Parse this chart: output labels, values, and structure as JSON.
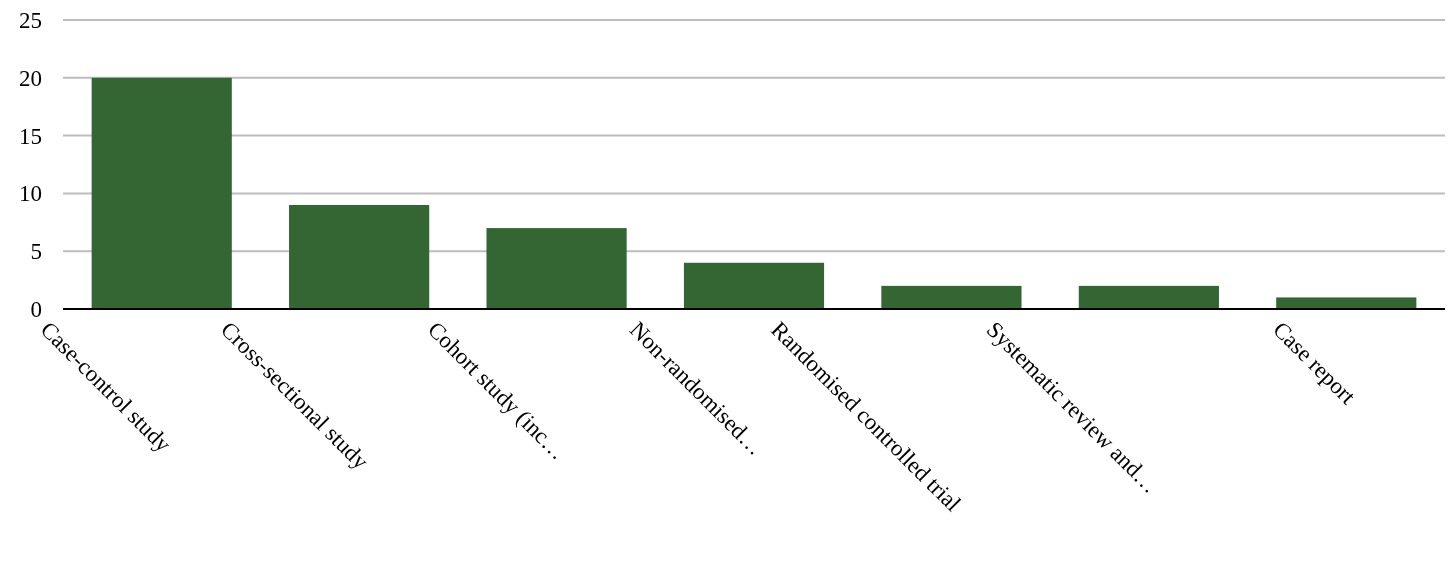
{
  "chart_data": {
    "type": "bar",
    "categories": [
      "Case-control study",
      "Cross-sectional study",
      "Cohort study (inc…",
      "Non-randomised…",
      "Randomised controlled trial",
      "Systematic review and…",
      "Case report"
    ],
    "values": [
      20,
      9,
      7,
      4,
      2,
      2,
      1
    ],
    "color": "#336633",
    "ylim": [
      0,
      25
    ],
    "yticks": [
      0,
      5,
      10,
      15,
      20,
      25
    ],
    "grid": "y"
  }
}
